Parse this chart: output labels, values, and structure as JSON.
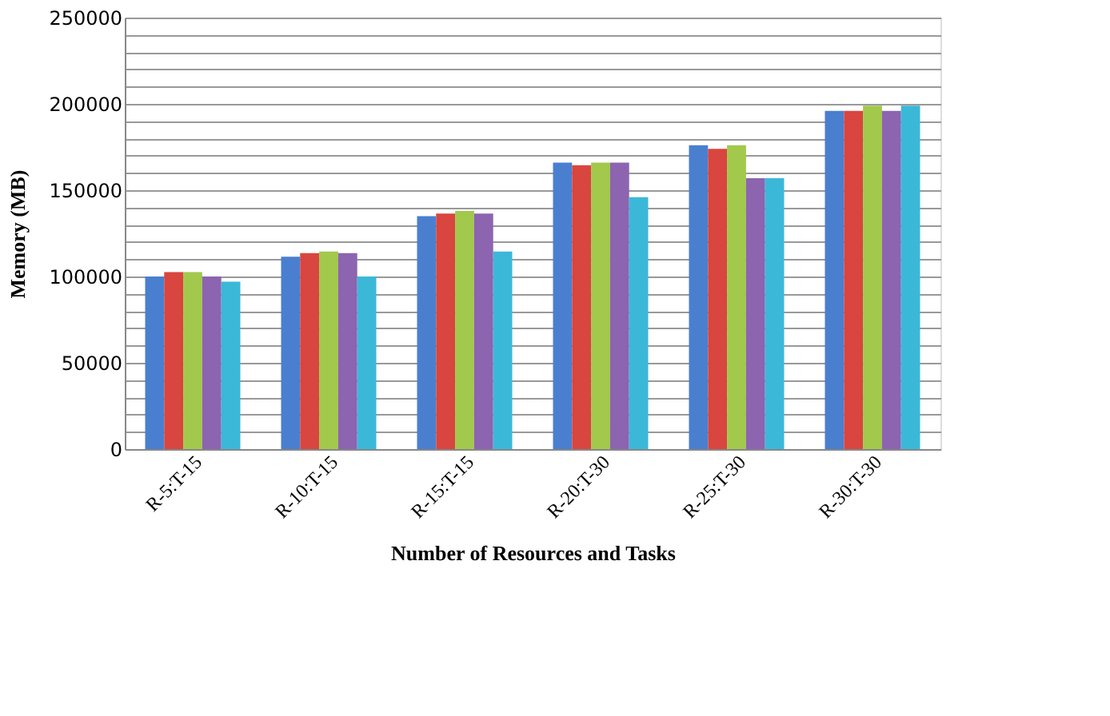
{
  "chart_data": {
    "type": "bar",
    "xlabel": "Number of Resources and Tasks",
    "ylabel": "Memory (MB)",
    "categories": [
      "R-5:T-15",
      "R-10:T-15",
      "R-15:T-15",
      "R-20:T-30",
      "R-25:T-30",
      "R-30:T-30"
    ],
    "series": [
      {
        "color": "#4a7fd0",
        "values": [
          100000,
          111500,
          135000,
          166000,
          176000,
          196000
        ]
      },
      {
        "color": "#d9453f",
        "values": [
          102500,
          113500,
          136500,
          164500,
          174000,
          196000
        ]
      },
      {
        "color": "#a2c84c",
        "values": [
          102500,
          114500,
          138000,
          166000,
          176000,
          199000
        ]
      },
      {
        "color": "#8c64b0",
        "values": [
          100000,
          113500,
          136500,
          166000,
          157000,
          196000
        ]
      },
      {
        "color": "#3bb8d8",
        "values": [
          97000,
          100000,
          114500,
          146000,
          157000,
          199000
        ]
      }
    ],
    "ylim": [
      0,
      250000
    ],
    "yticks": [
      0,
      {
        "value": 10000,
        "label": null
      },
      {
        "value": 20000,
        "label": null
      },
      {
        "value": 30000,
        "label": null
      },
      {
        "value": 40000,
        "label": null
      },
      50000,
      {
        "value": 60000,
        "label": null
      },
      {
        "value": 70000,
        "label": null
      },
      {
        "value": 80000,
        "label": null
      },
      {
        "value": 90000,
        "label": null
      },
      100000,
      {
        "value": 110000,
        "label": null
      },
      {
        "value": 120000,
        "label": null
      },
      {
        "value": 130000,
        "label": null
      },
      {
        "value": 140000,
        "label": null
      },
      150000,
      {
        "value": 160000,
        "label": null
      },
      {
        "value": 170000,
        "label": null
      },
      {
        "value": 180000,
        "label": null
      },
      {
        "value": 190000,
        "label": null
      },
      200000,
      {
        "value": 210000,
        "label": null
      },
      {
        "value": 220000,
        "label": null
      },
      {
        "value": 230000,
        "label": null
      },
      {
        "value": 240000,
        "label": null
      },
      250000
    ],
    "grid": "y",
    "legend": false
  }
}
